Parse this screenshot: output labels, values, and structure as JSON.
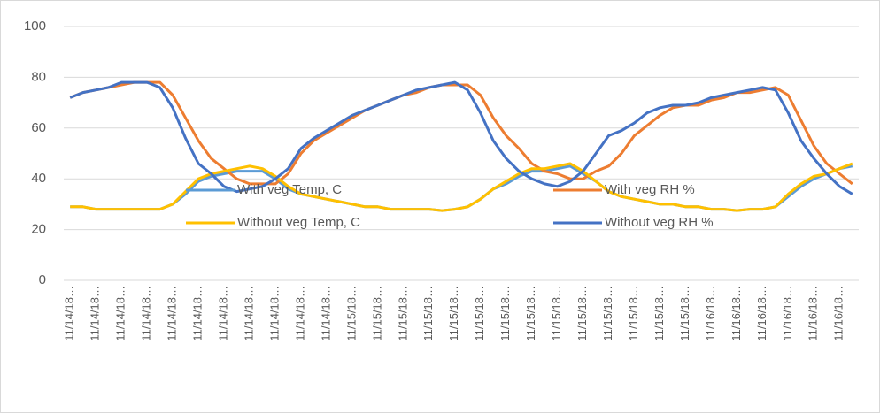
{
  "chart_data": {
    "type": "line",
    "categories": [
      "11/14/18…",
      null,
      "11/14/18…",
      null,
      "11/14/18…",
      null,
      "11/14/18…",
      null,
      "11/14/18…",
      null,
      "11/14/18…",
      null,
      "11/14/18…",
      null,
      "11/14/18…",
      null,
      "11/14/18…",
      null,
      "11/14/18…",
      null,
      "11/14/18…",
      null,
      "11/15/18…",
      null,
      "11/15/18…",
      null,
      "11/15/18…",
      null,
      "11/15/18…",
      null,
      "11/15/18…",
      null,
      "11/15/18…",
      null,
      "11/15/18…",
      null,
      "11/15/18…",
      null,
      "11/15/18…",
      null,
      "11/15/18…",
      null,
      "11/15/18…",
      null,
      "11/15/18…",
      null,
      "11/15/18…",
      null,
      "11/15/18…",
      null,
      "11/16/18…",
      null,
      "11/16/18…",
      null,
      "11/16/18…",
      null,
      "11/16/18…",
      null,
      "11/16/18…",
      null,
      "11/16/18…",
      null
    ],
    "series": [
      {
        "name": "With veg Temp, C",
        "color": "#5b9bd5",
        "values": [
          29,
          29,
          28,
          28,
          28,
          28,
          28,
          28,
          30,
          34,
          39,
          41,
          42,
          43,
          43,
          43,
          40,
          36,
          34,
          33,
          32,
          31,
          30,
          29,
          29,
          28,
          28,
          28,
          28,
          27.5,
          28,
          29,
          32,
          36,
          38,
          41,
          43,
          43,
          44,
          45,
          42,
          39,
          35,
          33,
          32,
          31,
          30,
          30,
          29,
          29,
          28,
          28,
          27.5,
          28,
          28,
          29,
          33,
          37,
          40,
          42,
          44,
          45
        ]
      },
      {
        "name": "With veg RH %",
        "color": "#ed7d31",
        "values": [
          72,
          74,
          75,
          76,
          77,
          78,
          78,
          78,
          73,
          64,
          55,
          48,
          44,
          40,
          38,
          38,
          38,
          42,
          50,
          55,
          58,
          61,
          64,
          67,
          69,
          71,
          73,
          74,
          76,
          77,
          77,
          77,
          73,
          64,
          57,
          52,
          46,
          43,
          42,
          40,
          40,
          43,
          45,
          50,
          57,
          61,
          65,
          68,
          69,
          69,
          71,
          72,
          74,
          74,
          75,
          76,
          73,
          63,
          53,
          46,
          42,
          38
        ]
      },
      {
        "name": "Without veg Temp, C",
        "color": "#ffc000",
        "values": [
          29,
          29,
          28,
          28,
          28,
          28,
          28,
          28,
          30,
          35,
          40,
          42,
          43,
          44,
          45,
          44,
          41,
          37,
          34,
          33,
          32,
          31,
          30,
          29,
          29,
          28,
          28,
          28,
          28,
          27.5,
          28,
          29,
          32,
          36,
          39,
          42,
          44,
          44,
          45,
          46,
          43,
          39,
          35,
          33,
          32,
          31,
          30,
          30,
          29,
          29,
          28,
          28,
          27.5,
          28,
          28,
          29,
          34,
          38,
          41,
          42,
          44,
          46
        ]
      },
      {
        "name": "Without veg RH %",
        "color": "#4472c4",
        "values": [
          72,
          74,
          75,
          76,
          78,
          78,
          78,
          76,
          68,
          56,
          46,
          42,
          37,
          35,
          36,
          37,
          40,
          44,
          52,
          56,
          59,
          62,
          65,
          67,
          69,
          71,
          73,
          75,
          76,
          77,
          78,
          75,
          66,
          55,
          48,
          43,
          40,
          38,
          37,
          39,
          43,
          50,
          57,
          59,
          62,
          66,
          68,
          69,
          69,
          70,
          72,
          73,
          74,
          75,
          76,
          75,
          66,
          55,
          48,
          42,
          37,
          34
        ]
      }
    ],
    "ylim": [
      0,
      100
    ],
    "yticks": [
      0,
      20,
      40,
      60,
      80,
      100
    ],
    "grid": true
  }
}
